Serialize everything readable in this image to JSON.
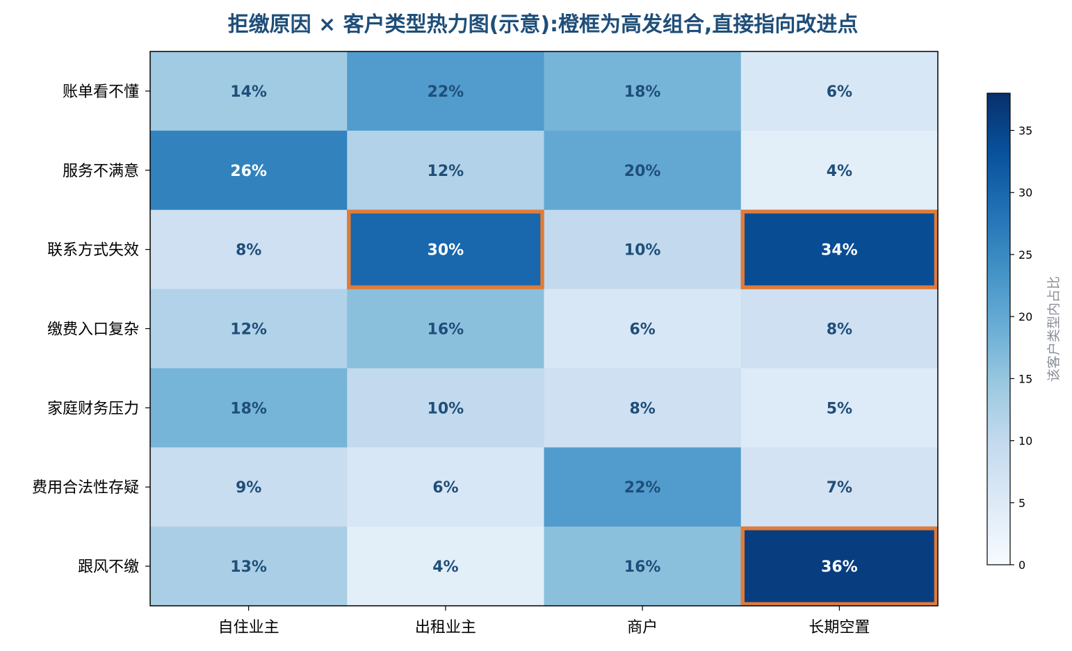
{
  "chart_data": {
    "type": "heatmap",
    "title": "拒缴原因 × 客户类型热力图(示意):橙框为高发组合,直接指向改进点",
    "columns": [
      "自住业主",
      "出租业主",
      "商户",
      "长期空置"
    ],
    "rows": [
      "账单看不懂",
      "服务不满意",
      "联系方式失效",
      "缴费入口复杂",
      "家庭财务压力",
      "费用合法性存疑",
      "跟风不缴"
    ],
    "values": [
      [
        14,
        22,
        18,
        6
      ],
      [
        26,
        12,
        20,
        4
      ],
      [
        8,
        30,
        10,
        34
      ],
      [
        12,
        16,
        6,
        8
      ],
      [
        18,
        10,
        8,
        5
      ],
      [
        9,
        6,
        22,
        7
      ],
      [
        13,
        4,
        16,
        36
      ]
    ],
    "value_suffix": "%",
    "highlighted_cells": [
      {
        "row": "联系方式失效",
        "column": "出租业主"
      },
      {
        "row": "联系方式失效",
        "column": "长期空置"
      },
      {
        "row": "跟风不缴",
        "column": "长期空置"
      }
    ],
    "colorbar": {
      "label": "该客户类型内占比",
      "range": [
        0,
        38
      ],
      "ticks": [
        0,
        5,
        10,
        15,
        20,
        25,
        30,
        35
      ],
      "colormap": "Blues"
    },
    "colors": {
      "title": "#1f4e79",
      "highlight": "#e07b39",
      "dark_label": "#1f4e79",
      "light_label": "#ffffff",
      "colorbar_label": "#8a8f98"
    }
  }
}
